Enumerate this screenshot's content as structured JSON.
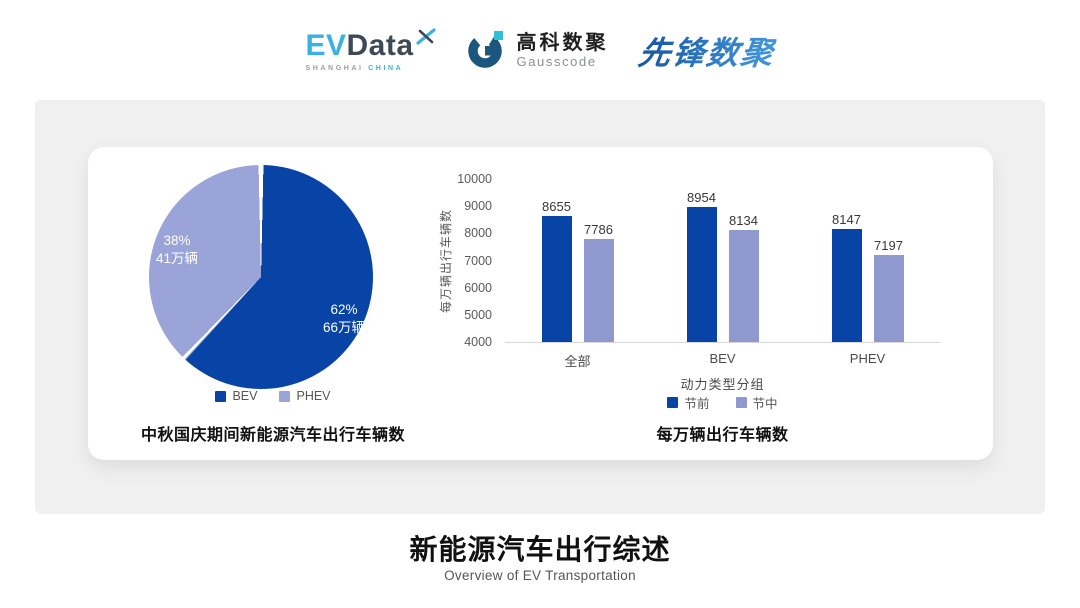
{
  "header": {
    "evdata": {
      "part1": "EV",
      "part2": "Data",
      "sub1": "SHANGHAI",
      "sub2": "CHINA"
    },
    "gausscode": {
      "cn": "高科数聚",
      "en": "Gausscode"
    },
    "pioneer": {
      "text": "先锋数聚"
    }
  },
  "colors": {
    "primary_blue": "#0843A6",
    "pie_light": "#9AA4D8",
    "bar_light": "#8F99CF",
    "accent_cyan": "#38B2E2",
    "dark_slate": "#3D4A55",
    "gauss_blue": "#1D567D",
    "gauss_cyan": "#2FC0D6",
    "panel_gray": "#F0F0F1"
  },
  "chart_data": [
    {
      "type": "pie",
      "title": "中秋国庆期间新能源汽车出行车辆数",
      "slices": [
        {
          "name": "BEV",
          "percent": 62,
          "label_pct": "62%",
          "label_value": "66万辆",
          "color": "#0843A6"
        },
        {
          "name": "PHEV",
          "percent": 38,
          "label_pct": "38%",
          "label_value": "41万辆",
          "color": "#9AA4D8"
        }
      ],
      "legend_position": "bottom",
      "start_angle_deg": 0,
      "direction": "clockwise"
    },
    {
      "type": "bar",
      "title": "每万辆出行车辆数",
      "categories": [
        "全部",
        "BEV",
        "PHEV"
      ],
      "series": [
        {
          "name": "节前",
          "color": "#0843A6",
          "values": [
            8655,
            8954,
            8147
          ]
        },
        {
          "name": "节中",
          "color": "#8F99CF",
          "values": [
            7786,
            8134,
            7197
          ]
        }
      ],
      "xlabel": "动力类型分组",
      "ylabel": "每万辆出行车辆数",
      "ylim": [
        4000,
        10000
      ],
      "yticks": [
        10000,
        9000,
        8000,
        7000,
        6000,
        5000,
        4000
      ],
      "grid": false,
      "legend_position": "bottom",
      "value_labels": true
    }
  ],
  "footer": {
    "title": "新能源汽车出行综述",
    "subtitle": "Overview of EV Transportation"
  }
}
